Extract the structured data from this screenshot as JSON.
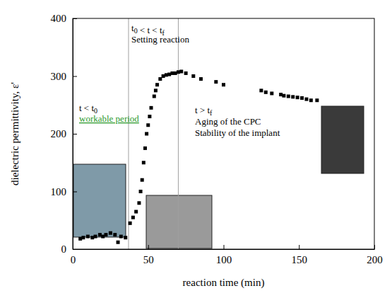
{
  "chart_data": {
    "type": "scatter",
    "x_label": "reaction time (min)",
    "y_label": "dielectric permittivity, ε'",
    "x": [
      5,
      7,
      10,
      13,
      15,
      18,
      20,
      22,
      25,
      28,
      30,
      32,
      35,
      38,
      40,
      42,
      44,
      45,
      46,
      47,
      48,
      49,
      50,
      51,
      52,
      54,
      55,
      56,
      58,
      60,
      62,
      64,
      66,
      68,
      70,
      72,
      75,
      80,
      85,
      95,
      100,
      125,
      128,
      132,
      138,
      140,
      143,
      146,
      149,
      152,
      155,
      158,
      162
    ],
    "y": [
      18,
      20,
      22,
      20,
      22,
      25,
      22,
      25,
      28,
      25,
      12,
      22,
      20,
      45,
      55,
      65,
      80,
      100,
      120,
      150,
      175,
      200,
      215,
      230,
      245,
      265,
      275,
      285,
      295,
      300,
      302,
      303,
      305,
      305,
      307,
      308,
      305,
      300,
      295,
      290,
      285,
      275,
      272,
      270,
      268,
      266,
      265,
      264,
      263,
      262,
      260,
      258,
      258
    ],
    "color": "#000000",
    "marker": "square",
    "xlim": [
      0,
      200
    ],
    "ylim": [
      0,
      400
    ],
    "xticks": [
      0,
      50,
      100,
      150,
      200
    ],
    "yticks": [
      0,
      100,
      200,
      300,
      400
    ],
    "grid": false,
    "vertical_lines": [
      37,
      70
    ],
    "annotations": [
      "t < t0",
      "workable period",
      "t0 < t < tf",
      "Setting reaction",
      "t > tf",
      "Aging of the CPC",
      "Stability of the implant"
    ]
  }
}
